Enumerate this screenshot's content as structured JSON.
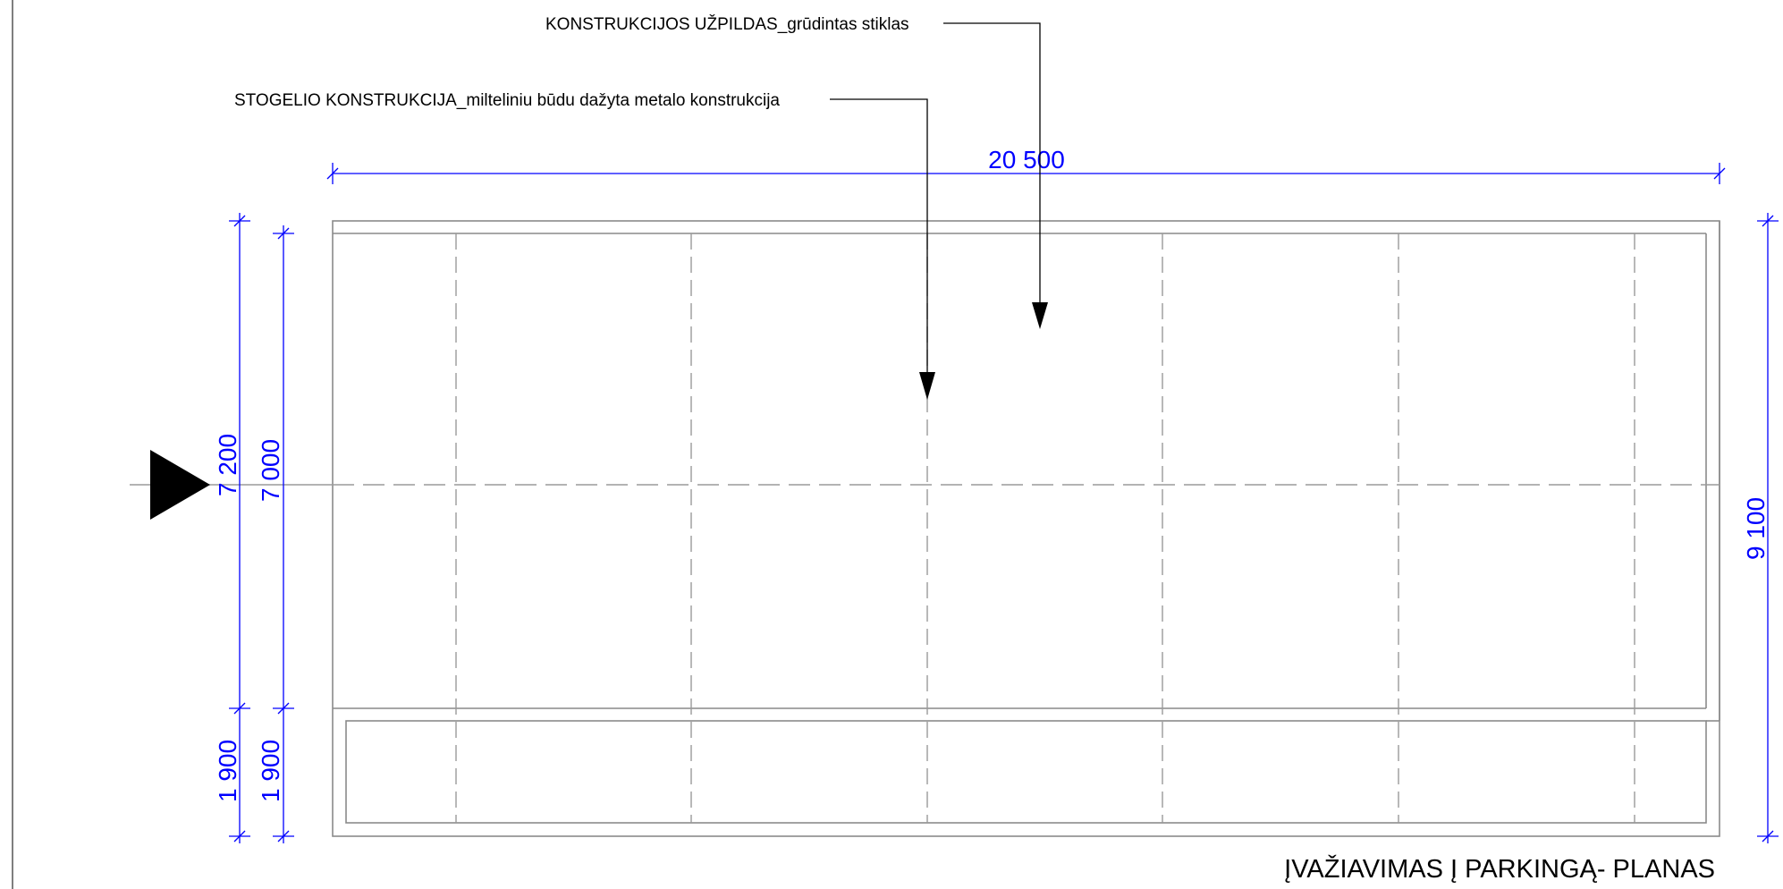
{
  "notes": {
    "infill": "KONSTRUKCIJOS UŽPILDAS_grūdintas stiklas",
    "roof_structure": "STOGELIO KONSTRUKCIJA_milteliniu būdu dažyta metalo konstrukcija"
  },
  "dimensions": {
    "overall_width": "20 500",
    "left_outer_main": "7 200",
    "left_inner_main": "7 000",
    "left_outer_bottom": "1 900",
    "left_inner_bottom": "1 900",
    "right_total": "9 100"
  },
  "title": "ĮVAŽIAVIMAS Į PARKINGĄ- PLANAS",
  "colors": {
    "dimension": "#0000ff",
    "outline": "#8a8a8a",
    "text": "#000000"
  }
}
